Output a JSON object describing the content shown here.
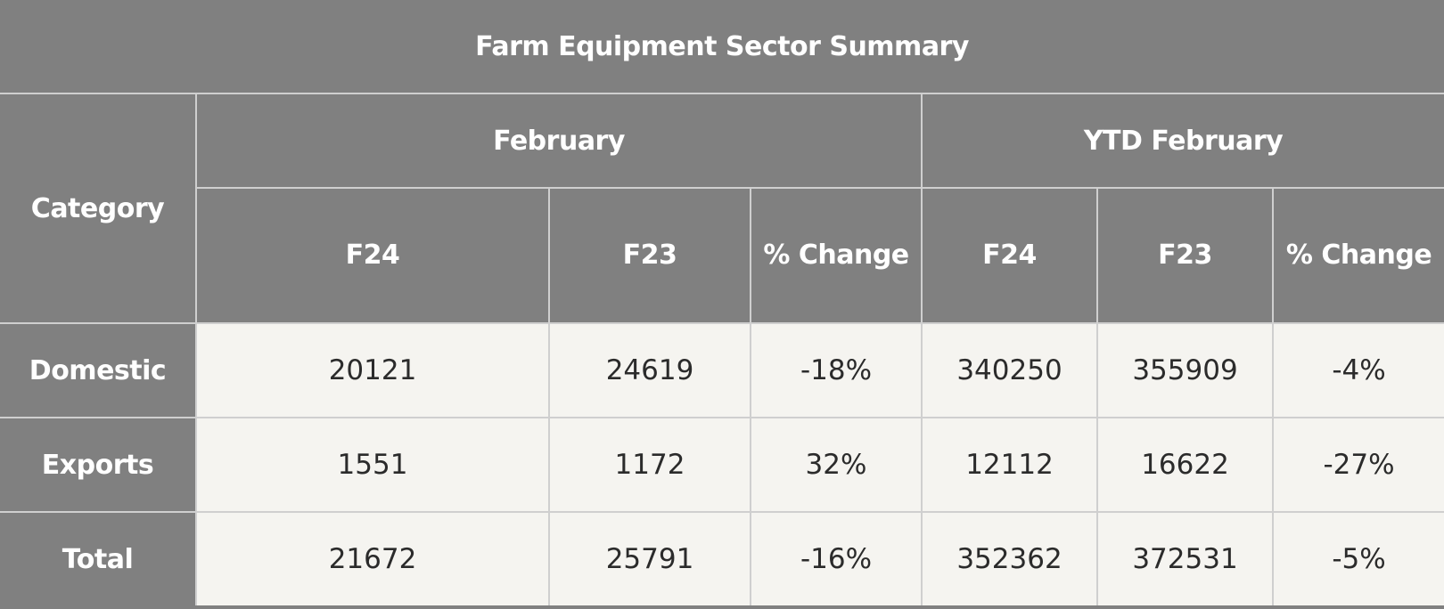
{
  "title": "Farm Equipment Sector Summary",
  "headers": {
    "category": "Category",
    "group_february": "February",
    "group_ytd": "YTD February",
    "sub": [
      "F24",
      "F23",
      "% Change",
      "F24",
      "F23",
      "% Change"
    ]
  },
  "rows": [
    {
      "label": "Domestic",
      "values": [
        "20121",
        "24619",
        "-18%",
        "340250",
        "355909",
        "-4%"
      ]
    },
    {
      "label": "Exports",
      "values": [
        "1551",
        "1172",
        "32%",
        "12112",
        "16622",
        "-27%"
      ]
    },
    {
      "label": "Total",
      "values": [
        "21672",
        "25791",
        "-16%",
        "352362",
        "372531",
        "-5%"
      ]
    }
  ],
  "colors": {
    "header_bg": "#808080",
    "header_text": "#ffffff",
    "cell_bg": "#f5f4f0",
    "cell_text": "#2b2b2b",
    "border": "#cfcfcf"
  }
}
